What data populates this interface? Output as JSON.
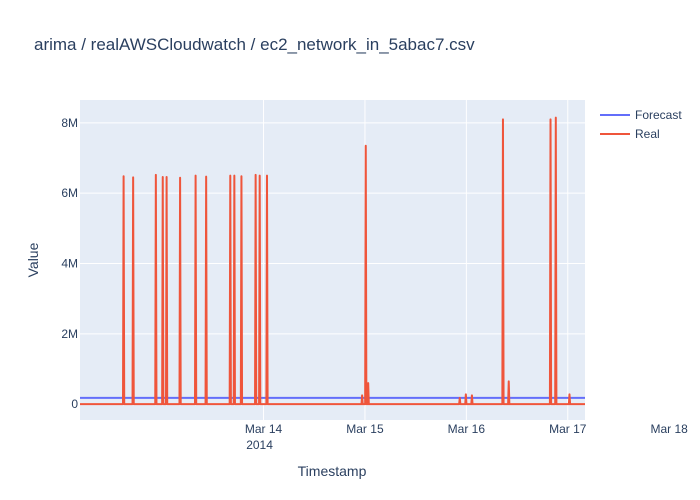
{
  "chart_data": {
    "type": "line",
    "title": "arima / realAWSCloudwatch / ec2_network_in_5abac7.csv",
    "xlabel": "Timestamp",
    "ylabel": "Value",
    "x_ticks": [
      {
        "label": "Mar 14",
        "sublabel": "2014",
        "value": 1.0
      },
      {
        "label": "Mar 15",
        "sublabel": "",
        "value": 2.0
      },
      {
        "label": "Mar 16",
        "sublabel": "",
        "value": 3.0
      },
      {
        "label": "Mar 17",
        "sublabel": "",
        "value": 4.0
      },
      {
        "label": "Mar 18",
        "sublabel": "",
        "value": 5.0
      }
    ],
    "y_ticks": [
      {
        "label": "0",
        "value": 0
      },
      {
        "label": "2M",
        "value": 2000000
      },
      {
        "label": "4M",
        "value": 4000000
      },
      {
        "label": "6M",
        "value": 6000000
      },
      {
        "label": "8M",
        "value": 8000000
      }
    ],
    "xlim": [
      -0.81,
      4.17
    ],
    "ylim": [
      -450000,
      8650000
    ],
    "grid": true,
    "legend_position": "top-right",
    "series": [
      {
        "name": "Forecast",
        "color": "#636efa",
        "baseline": 180000,
        "spikes": []
      },
      {
        "name": "Real",
        "color": "#ef553b",
        "baseline": 0,
        "spikes": [
          {
            "x": -0.38,
            "peak": 6480000
          },
          {
            "x": -0.286,
            "peak": 6450000
          },
          {
            "x": -0.062,
            "peak": 6520000
          },
          {
            "x": 0.006,
            "peak": 6460000
          },
          {
            "x": 0.044,
            "peak": 6460000
          },
          {
            "x": 0.177,
            "peak": 6440000
          },
          {
            "x": 0.33,
            "peak": 6500000
          },
          {
            "x": 0.434,
            "peak": 6470000
          },
          {
            "x": 0.672,
            "peak": 6500000
          },
          {
            "x": 0.712,
            "peak": 6500000
          },
          {
            "x": 0.782,
            "peak": 6480000
          },
          {
            "x": 0.922,
            "peak": 6520000
          },
          {
            "x": 0.962,
            "peak": 6500000
          },
          {
            "x": 1.034,
            "peak": 6500000
          },
          {
            "x": 2.008,
            "peak": 7350000
          },
          {
            "x": 3.361,
            "peak": 8100000
          },
          {
            "x": 3.83,
            "peak": 8100000
          },
          {
            "x": 3.882,
            "peak": 8150000
          },
          {
            "x": 1.972,
            "peak": 250000
          },
          {
            "x": 2.032,
            "peak": 600000
          },
          {
            "x": 2.935,
            "peak": 180000
          },
          {
            "x": 2.995,
            "peak": 280000
          },
          {
            "x": 3.055,
            "peak": 250000
          },
          {
            "x": 3.418,
            "peak": 650000
          },
          {
            "x": 4.017,
            "peak": 280000
          }
        ]
      }
    ]
  }
}
